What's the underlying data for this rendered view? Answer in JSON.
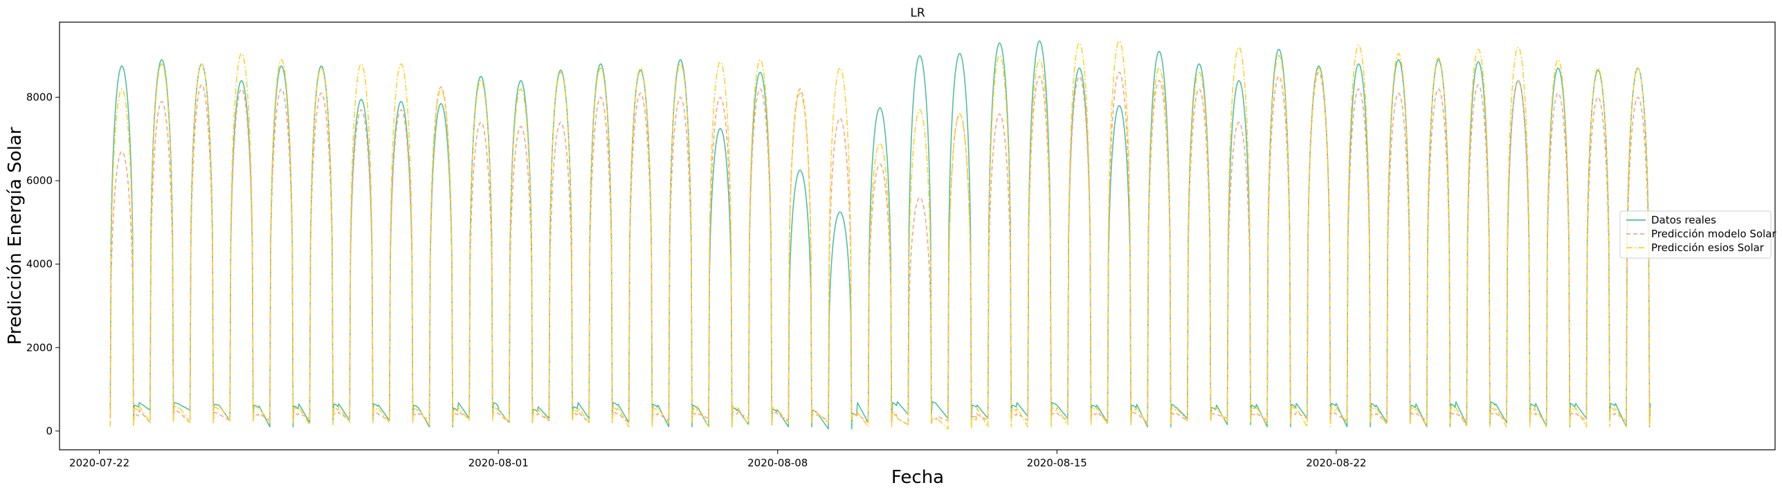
{
  "chart_data": {
    "type": "line",
    "title": "LR",
    "xlabel": "Fecha",
    "ylabel": "Predicción Energía Solar",
    "x_start": "2020-07-22",
    "x_end": "2020-08-29",
    "xlim": [
      "2020-07-21",
      "2020-09-02"
    ],
    "ylim": [
      -450,
      9800
    ],
    "x_ticks": [
      "2020-07-22",
      "2020-08-01",
      "2020-08-08",
      "2020-08-15",
      "2020-08-22"
    ],
    "y_ticks": [
      0,
      2000,
      4000,
      6000,
      8000
    ],
    "legend_position": "center-right",
    "grid": false,
    "series": [
      {
        "name": "Datos reales",
        "color": "#4fbf9f",
        "dash": "solid",
        "peaks": [
          8750,
          8900,
          8800,
          8400,
          8750,
          8750,
          7950,
          7900,
          7850,
          8500,
          8400,
          8650,
          8800,
          8650,
          8900,
          7250,
          8600,
          6250,
          5250,
          7750,
          9000,
          9050,
          9300,
          9350,
          8700,
          7800,
          9100,
          8800,
          8400,
          9150,
          8750,
          8800,
          8900,
          8900,
          8850,
          8400,
          8700,
          8650,
          8700
        ],
        "night": [
          620,
          680,
          640,
          620,
          600,
          650,
          650,
          620,
          550,
          680,
          520,
          580,
          680,
          640,
          620,
          560,
          520,
          500,
          420,
          680,
          700,
          620,
          620,
          680,
          620,
          620,
          640,
          560,
          620,
          640,
          660,
          660,
          620,
          650,
          700,
          650,
          660,
          660,
          660
        ],
        "troughs": [
          300,
          500,
          500,
          250,
          100,
          200,
          250,
          250,
          100,
          300,
          200,
          300,
          300,
          200,
          100,
          100,
          150,
          100,
          50,
          200,
          400,
          300,
          300,
          350,
          300,
          200,
          100,
          300,
          150,
          100,
          300,
          100,
          200,
          100,
          150,
          200,
          100,
          300,
          100
        ]
      },
      {
        "name": "Predicción modelo Solar",
        "color": "#f4a582",
        "dash": "dashed",
        "peaks": [
          6700,
          7900,
          8300,
          8200,
          8200,
          8100,
          7700,
          7700,
          8250,
          7400,
          7300,
          7400,
          8000,
          8100,
          8000,
          8000,
          8200,
          8200,
          7500,
          6400,
          5600,
          7600,
          7600,
          8500,
          8500,
          8600,
          8400,
          8200,
          7400,
          8500,
          8600,
          8200,
          8100,
          8200,
          8300,
          8400,
          8100,
          8000,
          8000
        ],
        "night": [
          400,
          500,
          450,
          400,
          420,
          420,
          450,
          400,
          420,
          450,
          420,
          420,
          450,
          420,
          420,
          420,
          450,
          400,
          400,
          400,
          300,
          350,
          400,
          420,
          420,
          450,
          420,
          420,
          400,
          420,
          450,
          400,
          420,
          420,
          420,
          420,
          420,
          420,
          420
        ],
        "troughs": [
          150,
          200,
          200,
          250,
          250,
          300,
          250,
          250,
          250,
          300,
          200,
          250,
          200,
          200,
          250,
          300,
          300,
          250,
          250,
          200,
          150,
          250,
          250,
          250,
          250,
          250,
          200,
          250,
          300,
          250,
          300,
          250,
          200,
          250,
          250,
          250,
          250,
          250,
          250
        ]
      },
      {
        "name": "Predicción esios Solar",
        "color": "#ffd02a",
        "dash": "dashdot",
        "peaks": [
          8200,
          8800,
          8800,
          9050,
          8900,
          8700,
          8800,
          8800,
          8200,
          8400,
          8200,
          8600,
          8700,
          8700,
          8800,
          8850,
          8900,
          8100,
          8700,
          6900,
          7700,
          7600,
          9000,
          8900,
          9300,
          9350,
          8700,
          8600,
          9200,
          9000,
          8700,
          9250,
          9050,
          8950,
          9150,
          9200,
          8900,
          8700,
          8700
        ],
        "night": [
          550,
          600,
          580,
          600,
          560,
          560,
          560,
          540,
          520,
          560,
          500,
          500,
          560,
          560,
          540,
          600,
          560,
          500,
          420,
          450,
          300,
          300,
          540,
          560,
          560,
          560,
          560,
          540,
          560,
          580,
          560,
          560,
          560,
          560,
          560,
          560,
          560,
          560,
          560
        ],
        "troughs": [
          100,
          200,
          200,
          250,
          200,
          150,
          200,
          200,
          150,
          250,
          200,
          250,
          200,
          100,
          200,
          100,
          150,
          200,
          200,
          100,
          150,
          50,
          100,
          100,
          150,
          150,
          150,
          250,
          200,
          150,
          100,
          200,
          150,
          100,
          100,
          100,
          100,
          100,
          100
        ]
      }
    ]
  }
}
